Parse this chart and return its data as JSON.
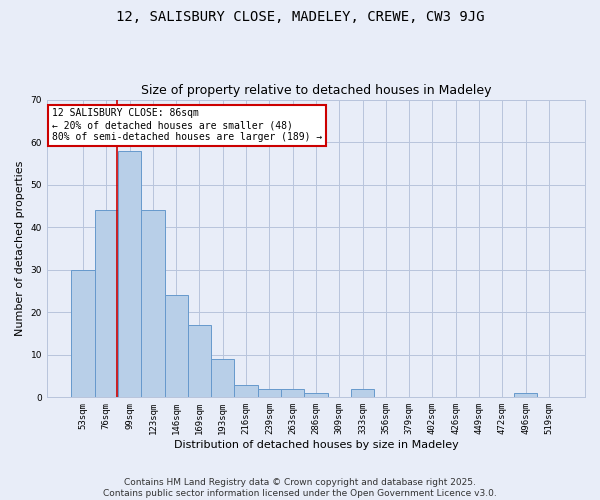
{
  "title": "12, SALISBURY CLOSE, MADELEY, CREWE, CW3 9JG",
  "subtitle": "Size of property relative to detached houses in Madeley",
  "xlabel": "Distribution of detached houses by size in Madeley",
  "ylabel": "Number of detached properties",
  "categories": [
    "53sqm",
    "76sqm",
    "99sqm",
    "123sqm",
    "146sqm",
    "169sqm",
    "193sqm",
    "216sqm",
    "239sqm",
    "263sqm",
    "286sqm",
    "309sqm",
    "333sqm",
    "356sqm",
    "379sqm",
    "402sqm",
    "426sqm",
    "449sqm",
    "472sqm",
    "496sqm",
    "519sqm"
  ],
  "values": [
    30,
    44,
    58,
    44,
    24,
    17,
    9,
    3,
    2,
    2,
    1,
    0,
    2,
    0,
    0,
    0,
    0,
    0,
    0,
    1,
    0
  ],
  "bar_color": "#b8cfe8",
  "bar_edge_color": "#6699cc",
  "background_color": "#e8edf8",
  "red_line_x": 1.45,
  "annotation_text": "12 SALISBURY CLOSE: 86sqm\n← 20% of detached houses are smaller (48)\n80% of semi-detached houses are larger (189) →",
  "annotation_box_color": "#ffffff",
  "annotation_box_edge_color": "#cc0000",
  "ylim": [
    0,
    70
  ],
  "yticks": [
    0,
    10,
    20,
    30,
    40,
    50,
    60,
    70
  ],
  "footer": "Contains HM Land Registry data © Crown copyright and database right 2025.\nContains public sector information licensed under the Open Government Licence v3.0.",
  "grid_color": "#b8c4dc",
  "red_line_color": "#cc0000",
  "title_fontsize": 10,
  "subtitle_fontsize": 9,
  "axis_label_fontsize": 8,
  "tick_fontsize": 6.5,
  "annotation_fontsize": 7,
  "footer_fontsize": 6.5,
  "ylabel_fontsize": 8
}
